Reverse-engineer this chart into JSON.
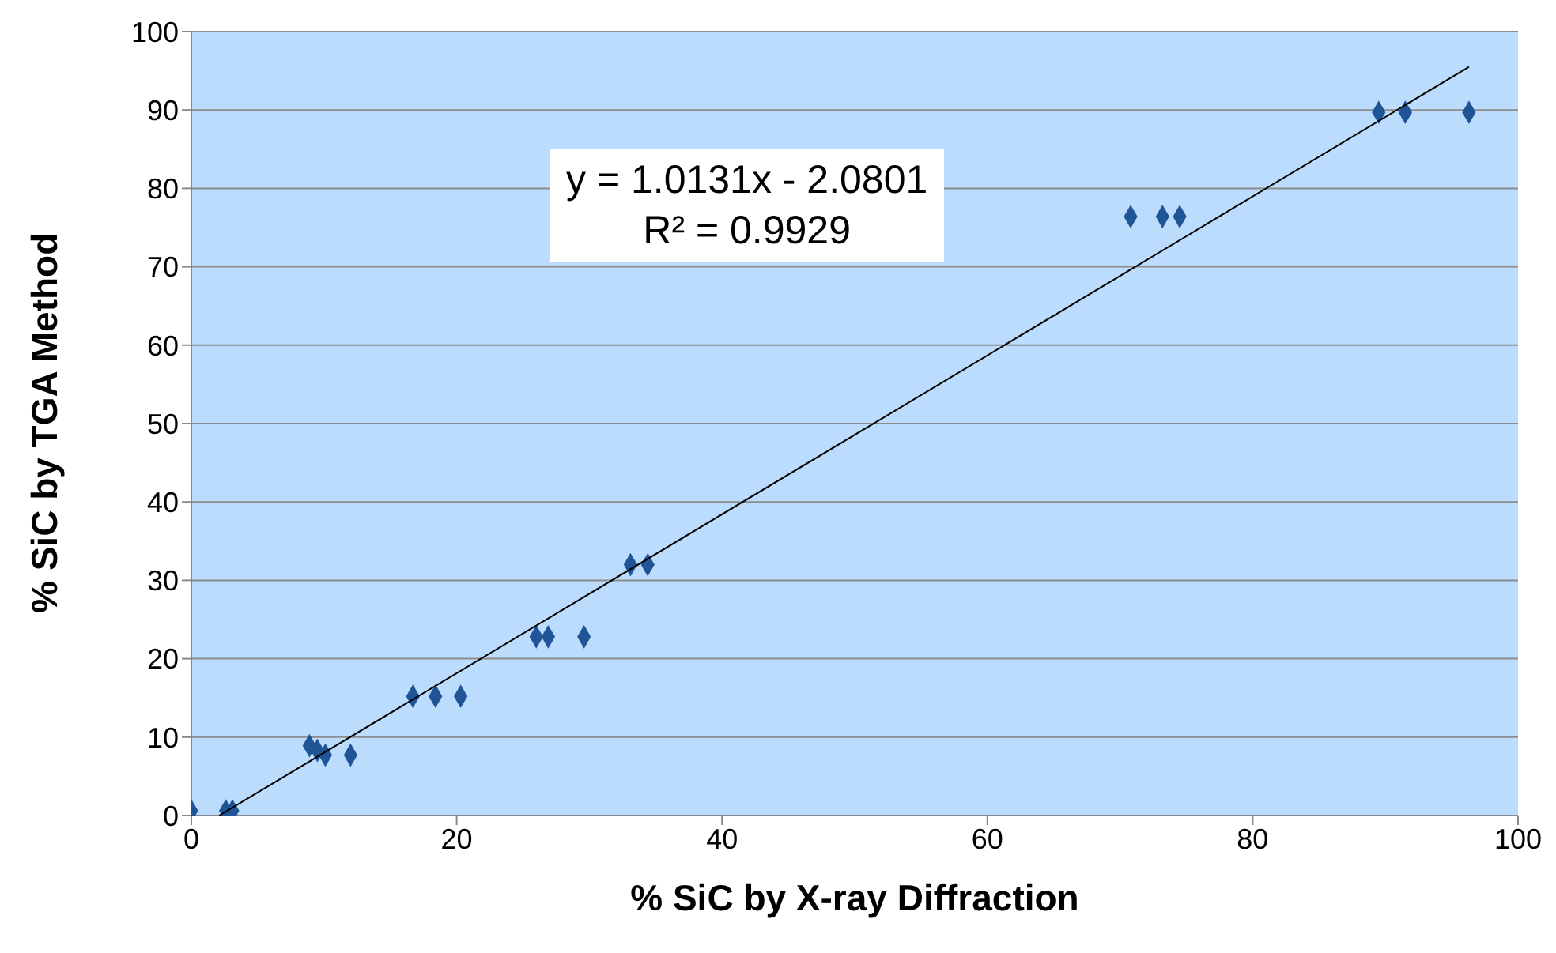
{
  "chart_data": {
    "type": "scatter",
    "xlabel": "% SiC by X-ray Diffraction",
    "ylabel": "% SiC by TGA Method",
    "xlim": [
      0,
      100
    ],
    "xticks": [
      0,
      20,
      40,
      60,
      80,
      100
    ],
    "ylim": [
      0,
      100
    ],
    "yticks": [
      0,
      10,
      20,
      30,
      40,
      50,
      60,
      70,
      80,
      90,
      100
    ],
    "grid": "y",
    "annotations": [
      "y = 1.0131x - 2.0801",
      "R² = 0.9929"
    ],
    "series": [
      {
        "marker": "diamond",
        "color": "#1f5597",
        "x": [
          0,
          2.6,
          3.1,
          8.9,
          9.5,
          10.1,
          12.0,
          16.7,
          18.4,
          20.3,
          26.0,
          26.9,
          29.6,
          33.1,
          34.4,
          70.8,
          73.2,
          74.5,
          89.5,
          91.5,
          96.3
        ],
        "values": [
          0.6,
          0.6,
          0.6,
          8.9,
          8.3,
          7.7,
          7.7,
          15.2,
          15.2,
          15.2,
          22.8,
          22.8,
          22.8,
          32,
          32,
          76.4,
          76.4,
          76.4,
          89.7,
          89.7,
          89.7
        ]
      },
      {
        "type": "line",
        "marker": "none",
        "color": "#000000",
        "x": [
          2.1,
          96.3
        ],
        "values": [
          0,
          95.5
        ]
      }
    ]
  }
}
